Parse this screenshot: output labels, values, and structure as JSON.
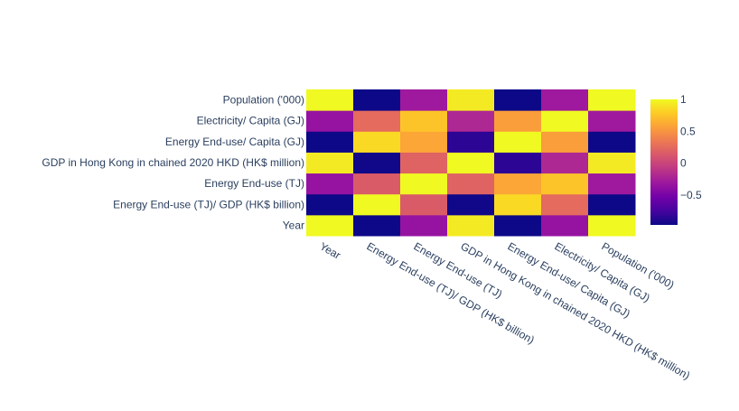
{
  "chart_data": {
    "type": "heatmap",
    "x_categories": [
      "Year",
      "Energy End-use (TJ)/ GDP (HK$ billion)",
      "Energy End-use (TJ)",
      "GDP in Hong Kong in chained 2020 HKD (HK$ million)",
      "Energy End-use/ Capita (GJ)",
      "Electricity/ Capita (GJ)",
      "Population ('000)"
    ],
    "y_categories": [
      "Year",
      "Energy End-use (TJ)/ GDP (HK$ billion)",
      "Energy End-use (TJ)",
      "GDP in Hong Kong in chained 2020 HKD (HK$ million)",
      "Energy End-use/ Capita (GJ)",
      "Electricity/ Capita (GJ)",
      "Population ('000)"
    ],
    "z": [
      [
        1.0,
        -0.97,
        -0.35,
        0.93,
        -0.97,
        -0.35,
        1.0
      ],
      [
        -0.97,
        1.0,
        0.15,
        -0.96,
        0.85,
        0.25,
        -0.97
      ],
      [
        -0.35,
        0.15,
        1.0,
        0.2,
        0.6,
        0.75,
        -0.3
      ],
      [
        0.93,
        -0.96,
        0.2,
        1.0,
        -0.85,
        -0.2,
        0.93
      ],
      [
        -0.97,
        0.85,
        0.6,
        -0.85,
        1.0,
        0.55,
        -0.97
      ],
      [
        -0.35,
        0.25,
        0.75,
        -0.2,
        0.55,
        1.0,
        -0.3
      ],
      [
        1.0,
        -0.97,
        -0.3,
        0.93,
        -0.97,
        -0.3,
        1.0
      ]
    ],
    "zmin": -0.97,
    "zmax": 1.0,
    "colorbar": {
      "tick_values": [
        1,
        0.5,
        0,
        -0.5
      ],
      "tick_labels": [
        "1",
        "0.5",
        "0",
        "−0.5"
      ]
    },
    "colorscale": [
      "#0d0887",
      "#46039f",
      "#7201a8",
      "#9c179e",
      "#bd3786",
      "#d8576b",
      "#ed7953",
      "#fb9f3a",
      "#fdca26",
      "#f0f921"
    ]
  }
}
